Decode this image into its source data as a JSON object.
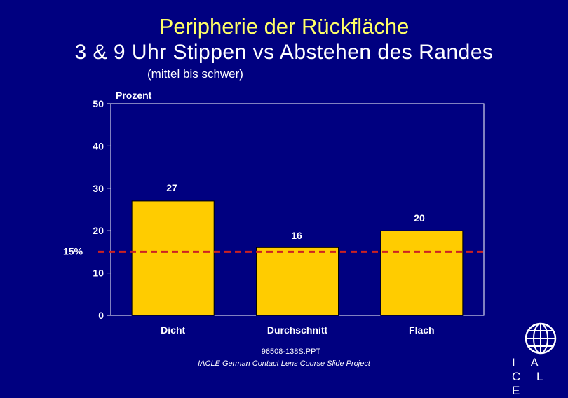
{
  "slide": {
    "title": "Peripherie der Rückfläche",
    "subtitle": "3 & 9 Uhr Stippen vs Abstehen des Randes",
    "subsubtitle": "(mittel bis schwer)"
  },
  "chart_data": {
    "type": "bar",
    "categories": [
      "Dicht",
      "Durchschnitt",
      "Flach"
    ],
    "values": [
      27,
      16,
      20
    ],
    "ylabel": "Prozent",
    "ylim": [
      0,
      50
    ],
    "yticks": [
      0,
      10,
      20,
      30,
      40,
      50
    ],
    "grid": false,
    "reference_line": {
      "value": 15,
      "label": "15%",
      "color": "#cc2222"
    },
    "bar_color": "#ffcc00"
  },
  "footer": {
    "file": "96508-138S.PPT",
    "project": "IACLE German Contact Lens Course Slide Project",
    "logo_text": "IACLE"
  }
}
